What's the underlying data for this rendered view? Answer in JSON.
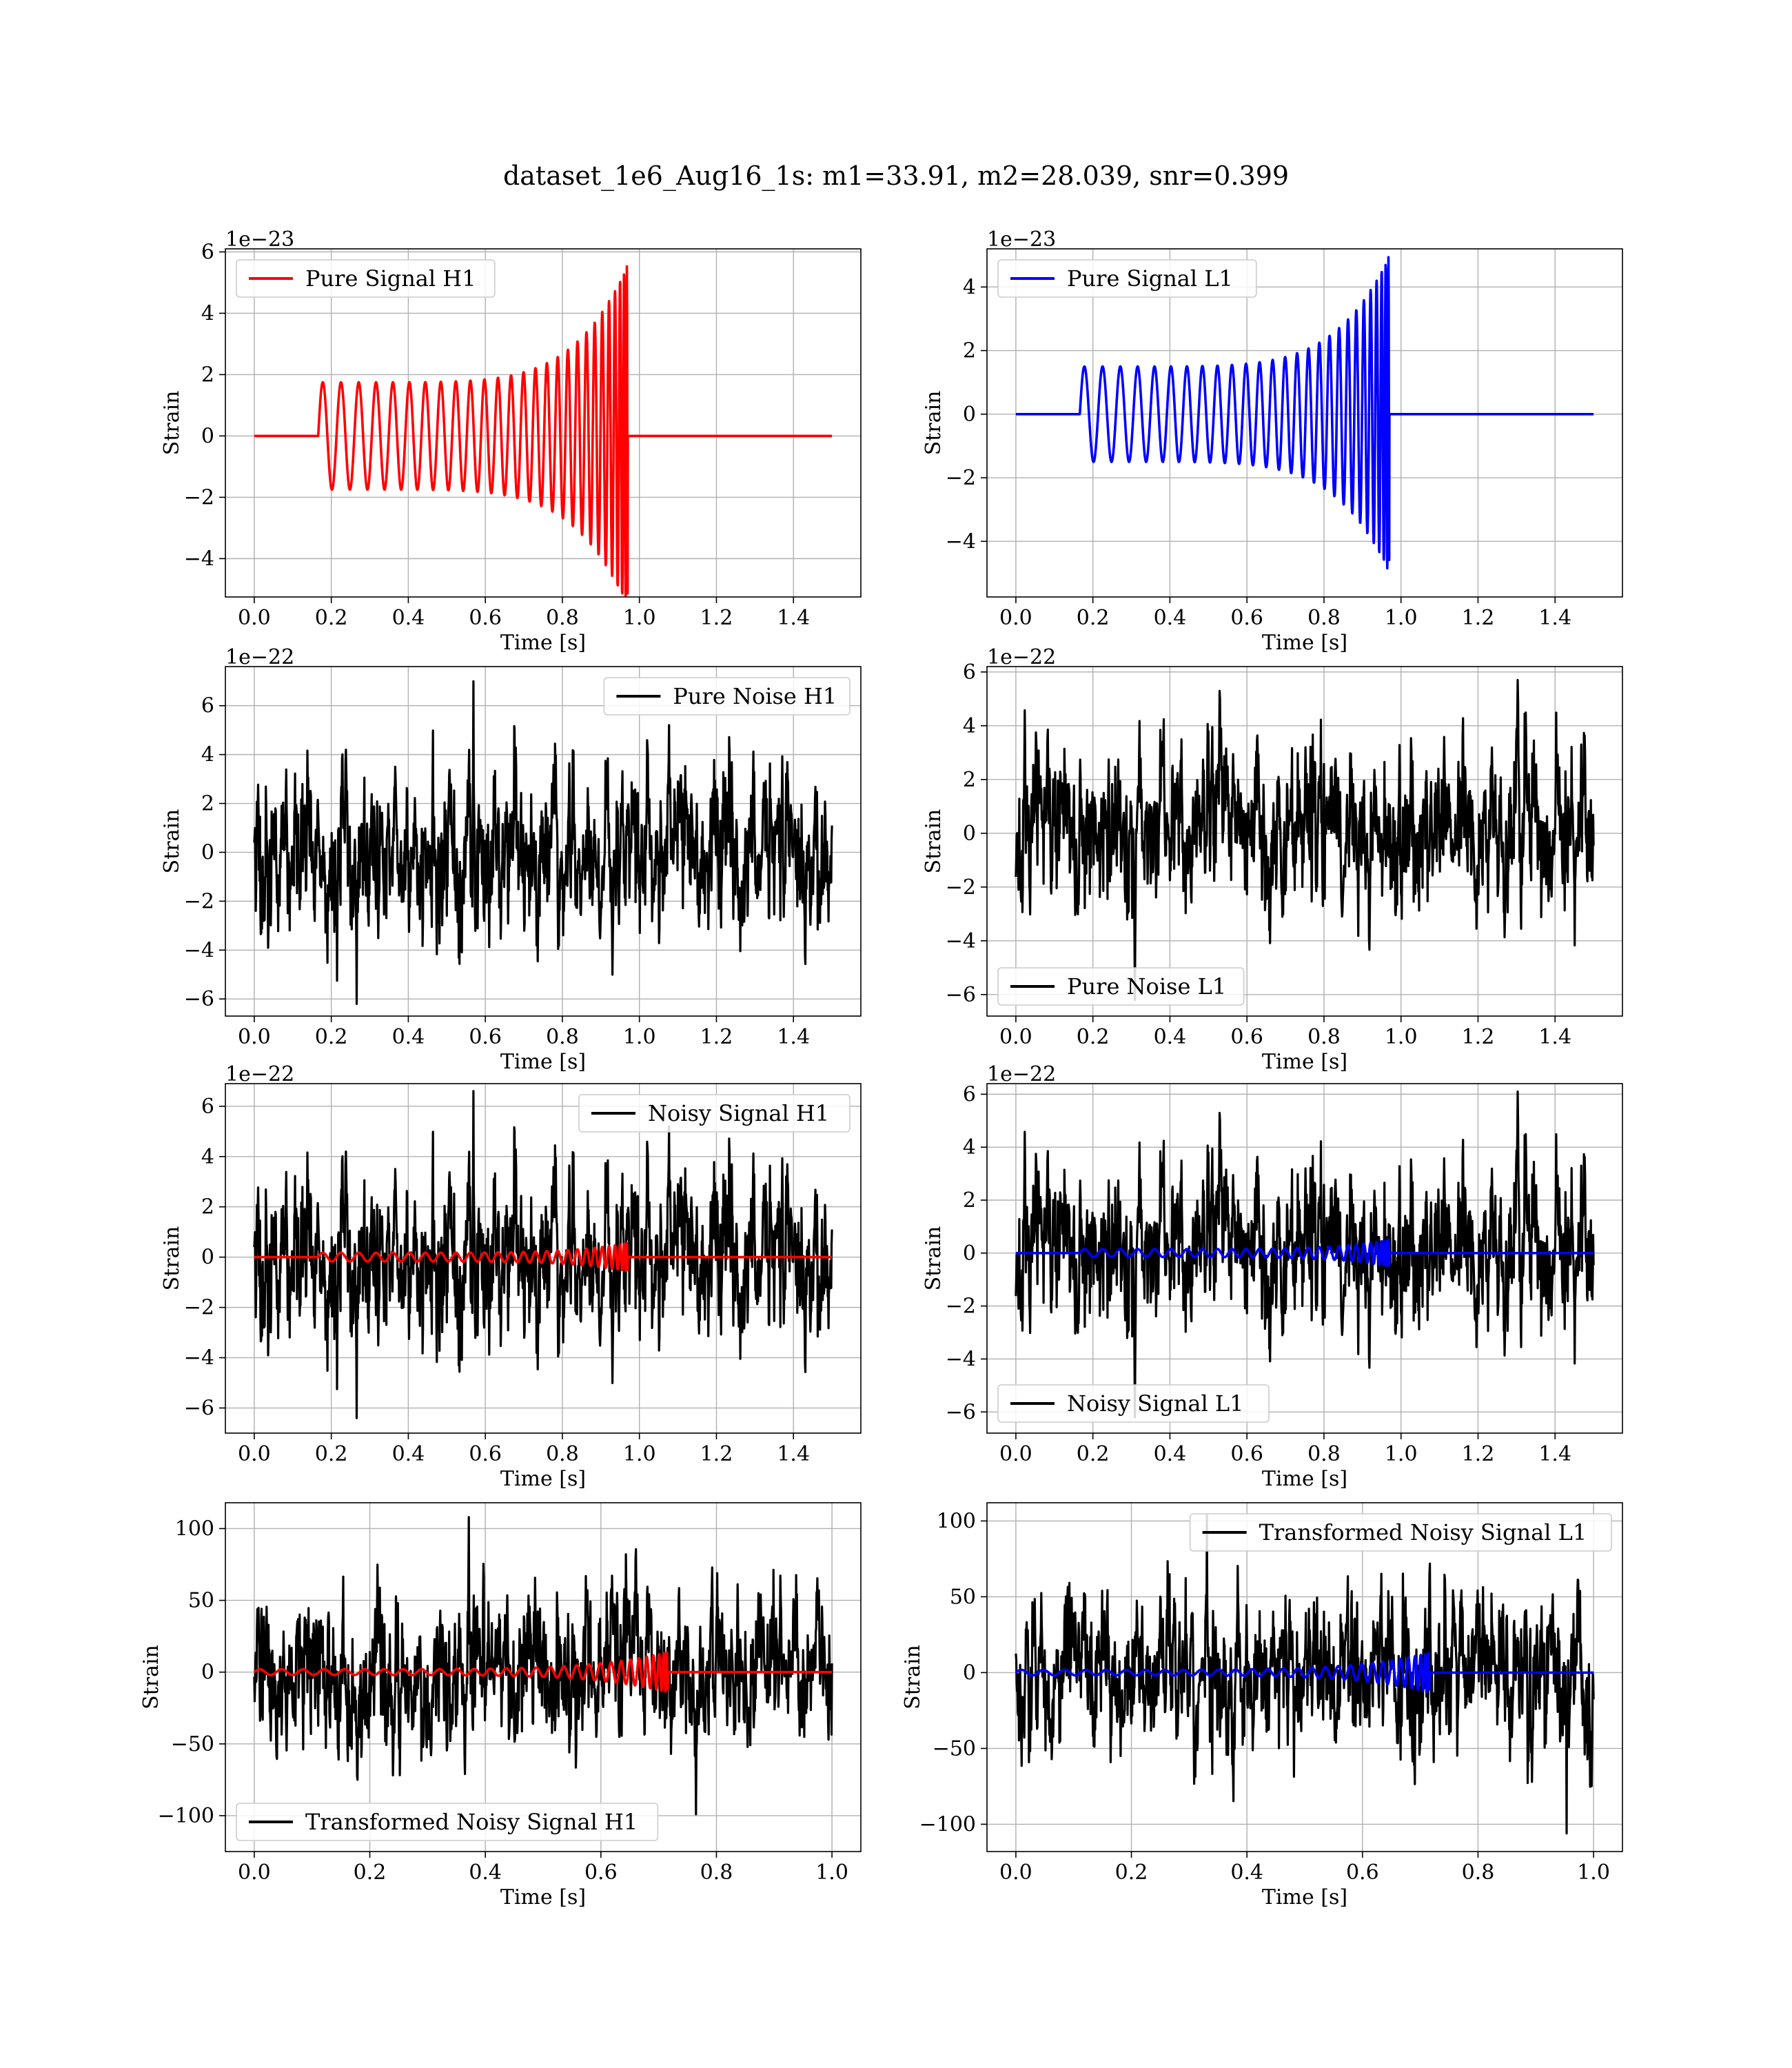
{
  "figure": {
    "title": "dataset_1e6_Aug16_1s: m1=33.91, m2=28.039, snr=0.399"
  },
  "colors": {
    "h1_signal": "#ff0000",
    "l1_signal": "#0000ff",
    "noise": "#000000",
    "grid": "#b0b0b0",
    "frame": "#000000"
  },
  "chart_data": [
    {
      "type": "line",
      "panel": "pure-signal-h1",
      "xlabel": "Time [s]",
      "ylabel": "Strain",
      "offset_text": "1e−23",
      "xlim": [
        -0.075,
        1.575
      ],
      "ylim": [
        -5.25,
        6.1
      ],
      "xticks": [
        0.0,
        0.2,
        0.4,
        0.6,
        0.8,
        1.0,
        1.2,
        1.4
      ],
      "xtick_labels": [
        "0.0",
        "0.2",
        "0.4",
        "0.6",
        "0.8",
        "1.0",
        "1.2",
        "1.4"
      ],
      "yticks": [
        -4,
        -2,
        0,
        2,
        4,
        6
      ],
      "ytick_labels": [
        "−4",
        "−2",
        "0",
        "2",
        "4",
        "6"
      ],
      "grid": true,
      "legend_loc": "upper left",
      "series": [
        {
          "name": "Pure Signal H1",
          "color": "#ff0000",
          "kind": "chirp",
          "x_start": 0.0,
          "x_end": 1.5,
          "t_on": 0.166,
          "t_merge": 0.97,
          "amp_base": 1.75,
          "amp_peak": 5.6,
          "cycles": 27
        }
      ]
    },
    {
      "type": "line",
      "panel": "pure-signal-l1",
      "xlabel": "Time [s]",
      "ylabel": "Strain",
      "offset_text": "1e−23",
      "xlim": [
        -0.075,
        1.575
      ],
      "ylim": [
        -5.75,
        5.2
      ],
      "xticks": [
        0.0,
        0.2,
        0.4,
        0.6,
        0.8,
        1.0,
        1.2,
        1.4
      ],
      "xtick_labels": [
        "0.0",
        "0.2",
        "0.4",
        "0.6",
        "0.8",
        "1.0",
        "1.2",
        "1.4"
      ],
      "yticks": [
        -4,
        -2,
        0,
        2,
        4
      ],
      "ytick_labels": [
        "−4",
        "−2",
        "0",
        "2",
        "4"
      ],
      "grid": true,
      "legend_loc": "upper left",
      "series": [
        {
          "name": "Pure Signal L1",
          "color": "#0000ff",
          "kind": "chirp",
          "x_start": 0.0,
          "x_end": 1.5,
          "t_on": 0.166,
          "t_merge": 0.97,
          "amp_base": 1.5,
          "amp_peak": 5.0,
          "cycles": 27
        }
      ]
    },
    {
      "type": "line",
      "panel": "pure-noise-h1",
      "xlabel": "Time [s]",
      "ylabel": "Strain",
      "offset_text": "1e−22",
      "xlim": [
        -0.075,
        1.575
      ],
      "ylim": [
        -6.7,
        7.6
      ],
      "xticks": [
        0.0,
        0.2,
        0.4,
        0.6,
        0.8,
        1.0,
        1.2,
        1.4
      ],
      "xtick_labels": [
        "0.0",
        "0.2",
        "0.4",
        "0.6",
        "0.8",
        "1.0",
        "1.2",
        "1.4"
      ],
      "yticks": [
        -6,
        -4,
        -2,
        0,
        2,
        4,
        6
      ],
      "ytick_labels": [
        "−6",
        "−4",
        "−2",
        "0",
        "2",
        "4",
        "6"
      ],
      "grid": true,
      "legend_loc": "upper right",
      "series": [
        {
          "name": "Pure Noise H1",
          "color": "#000000",
          "kind": "noise",
          "x_start": 0.0,
          "x_end": 1.5,
          "sigma": 1.7,
          "max": 7.0,
          "min": -6.2,
          "seed": 11
        }
      ]
    },
    {
      "type": "line",
      "panel": "pure-noise-l1",
      "xlabel": "Time [s]",
      "ylabel": "Strain",
      "offset_text": "1e−22",
      "xlim": [
        -0.075,
        1.575
      ],
      "ylim": [
        -6.8,
        6.2
      ],
      "xticks": [
        0.0,
        0.2,
        0.4,
        0.6,
        0.8,
        1.0,
        1.2,
        1.4
      ],
      "xtick_labels": [
        "0.0",
        "0.2",
        "0.4",
        "0.6",
        "0.8",
        "1.0",
        "1.2",
        "1.4"
      ],
      "yticks": [
        -6,
        -4,
        -2,
        0,
        2,
        4,
        6
      ],
      "ytick_labels": [
        "−6",
        "−4",
        "−2",
        "0",
        "2",
        "4",
        "6"
      ],
      "grid": true,
      "legend_loc": "lower left",
      "series": [
        {
          "name": "Pure Noise L1",
          "color": "#000000",
          "kind": "noise",
          "x_start": 0.0,
          "x_end": 1.5,
          "sigma": 1.55,
          "max": 5.7,
          "min": -6.2,
          "seed": 23
        }
      ]
    },
    {
      "type": "line",
      "panel": "noisy-signal-h1",
      "xlabel": "Time [s]",
      "ylabel": "Strain",
      "offset_text": "1e−22",
      "xlim": [
        -0.075,
        1.575
      ],
      "ylim": [
        -7.0,
        6.9
      ],
      "xticks": [
        0.0,
        0.2,
        0.4,
        0.6,
        0.8,
        1.0,
        1.2,
        1.4
      ],
      "xtick_labels": [
        "0.0",
        "0.2",
        "0.4",
        "0.6",
        "0.8",
        "1.0",
        "1.2",
        "1.4"
      ],
      "yticks": [
        -6,
        -4,
        -2,
        0,
        2,
        4,
        6
      ],
      "ytick_labels": [
        "−6",
        "−4",
        "−2",
        "0",
        "2",
        "4",
        "6"
      ],
      "grid": true,
      "legend_loc": "upper right",
      "series": [
        {
          "name": "Noisy Signal H1",
          "color": "#000000",
          "kind": "noise",
          "x_start": 0.0,
          "x_end": 1.5,
          "sigma": 1.7,
          "max": 6.6,
          "min": -6.4,
          "seed": 11
        },
        {
          "color": "#ff0000",
          "kind": "chirp",
          "x_start": 0.0,
          "x_end": 1.5,
          "t_on": 0.166,
          "t_merge": 0.97,
          "amp_base": 0.175,
          "amp_peak": 0.56,
          "cycles": 27
        }
      ]
    },
    {
      "type": "line",
      "panel": "noisy-signal-l1",
      "xlabel": "Time [s]",
      "ylabel": "Strain",
      "offset_text": "1e−22",
      "xlim": [
        -0.075,
        1.575
      ],
      "ylim": [
        -6.8,
        6.4
      ],
      "xticks": [
        0.0,
        0.2,
        0.4,
        0.6,
        0.8,
        1.0,
        1.2,
        1.4
      ],
      "xtick_labels": [
        "0.0",
        "0.2",
        "0.4",
        "0.6",
        "0.8",
        "1.0",
        "1.2",
        "1.4"
      ],
      "yticks": [
        -6,
        -4,
        -2,
        0,
        2,
        4,
        6
      ],
      "ytick_labels": [
        "−6",
        "−4",
        "−2",
        "0",
        "2",
        "4",
        "6"
      ],
      "grid": true,
      "legend_loc": "lower left",
      "series": [
        {
          "name": "Noisy Signal L1",
          "color": "#000000",
          "kind": "noise",
          "x_start": 0.0,
          "x_end": 1.5,
          "sigma": 1.55,
          "max": 6.1,
          "min": -6.2,
          "seed": 23
        },
        {
          "color": "#0000ff",
          "kind": "chirp",
          "x_start": 0.0,
          "x_end": 1.5,
          "t_on": 0.166,
          "t_merge": 0.97,
          "amp_base": 0.15,
          "amp_peak": 0.5,
          "cycles": 27
        }
      ]
    },
    {
      "type": "line",
      "panel": "transformed-noisy-signal-h1",
      "xlabel": "Time [s]",
      "ylabel": "Strain",
      "offset_text": "",
      "xlim": [
        -0.05,
        1.05
      ],
      "ylim": [
        -125,
        118
      ],
      "xticks": [
        0.0,
        0.2,
        0.4,
        0.6,
        0.8,
        1.0
      ],
      "xtick_labels": [
        "0.0",
        "0.2",
        "0.4",
        "0.6",
        "0.8",
        "1.0"
      ],
      "yticks": [
        -100,
        -50,
        0,
        50,
        100
      ],
      "ytick_labels": [
        "−100",
        "−50",
        "0",
        "50",
        "100"
      ],
      "grid": true,
      "legend_loc": "lower left",
      "series": [
        {
          "name": "Transformed Noisy Signal H1",
          "color": "#000000",
          "kind": "noise",
          "x_start": 0.0,
          "x_end": 1.0,
          "sigma": 27,
          "max": 108,
          "min": -99,
          "seed": 37
        },
        {
          "color": "#ff0000",
          "kind": "chirp",
          "x_start": 0.0,
          "x_end": 1.0,
          "t_on": 0.0,
          "t_merge": 0.716,
          "amp_base": 2.0,
          "amp_peak": 14,
          "cycles": 30
        }
      ]
    },
    {
      "type": "line",
      "panel": "transformed-noisy-signal-l1",
      "xlabel": "Time [s]",
      "ylabel": "Strain",
      "offset_text": "",
      "xlim": [
        -0.05,
        1.05
      ],
      "ylim": [
        -118,
        112
      ],
      "xticks": [
        0.0,
        0.2,
        0.4,
        0.6,
        0.8,
        1.0
      ],
      "xtick_labels": [
        "0.0",
        "0.2",
        "0.4",
        "0.6",
        "0.8",
        "1.0"
      ],
      "yticks": [
        -100,
        -50,
        0,
        50,
        100
      ],
      "ytick_labels": [
        "−100",
        "−50",
        "0",
        "50",
        "100"
      ],
      "grid": true,
      "legend_loc": "upper right",
      "series": [
        {
          "name": "Transformed Noisy Signal L1",
          "color": "#000000",
          "kind": "noise",
          "x_start": 0.0,
          "x_end": 1.0,
          "sigma": 26,
          "max": 104,
          "min": -106,
          "seed": 53
        },
        {
          "color": "#0000ff",
          "kind": "chirp",
          "x_start": 0.0,
          "x_end": 1.0,
          "t_on": 0.0,
          "t_merge": 0.716,
          "amp_base": 1.8,
          "amp_peak": 13,
          "cycles": 30
        }
      ]
    }
  ]
}
